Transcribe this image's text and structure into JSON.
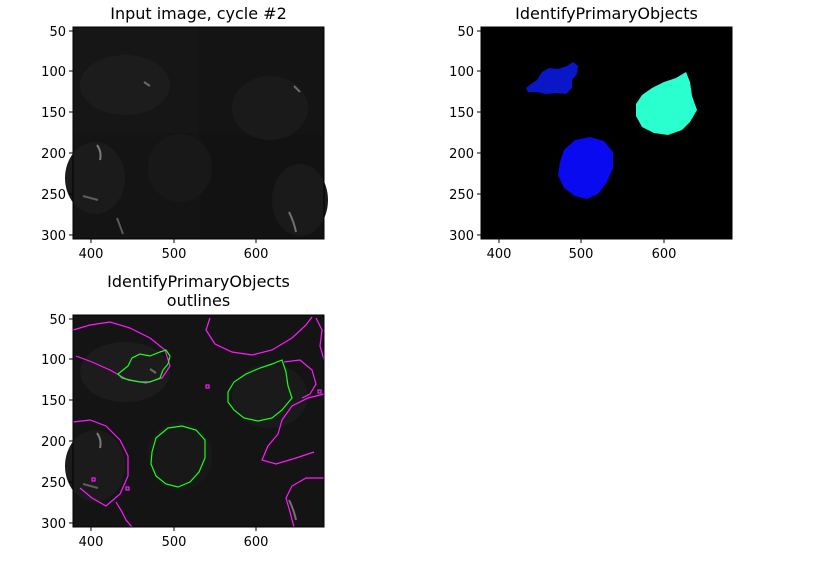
{
  "panels": [
    {
      "id": "input",
      "title_lines": [
        "Input image, cycle #2"
      ],
      "x_ticks": [
        "400",
        "500",
        "600"
      ],
      "y_ticks": [
        "50",
        "100",
        "150",
        "200",
        "250",
        "300"
      ]
    },
    {
      "id": "labels",
      "title_lines": [
        "IdentifyPrimaryObjects"
      ],
      "x_ticks": [
        "400",
        "500",
        "600"
      ],
      "y_ticks": [
        "50",
        "100",
        "150",
        "200",
        "250",
        "300"
      ]
    },
    {
      "id": "outlines",
      "title_lines": [
        "IdentifyPrimaryObjects",
        "outlines"
      ],
      "x_ticks": [
        "400",
        "500",
        "600"
      ],
      "y_ticks": [
        "50",
        "100",
        "150",
        "200",
        "250",
        "300"
      ]
    }
  ],
  "colors": {
    "object_dark_blue": "#0a17c8",
    "object_blue": "#0a0af0",
    "object_cyan": "#2affcf",
    "outline_primary": "#19ff19",
    "outline_other": "#ff19ff",
    "image_background": "#141414"
  }
}
